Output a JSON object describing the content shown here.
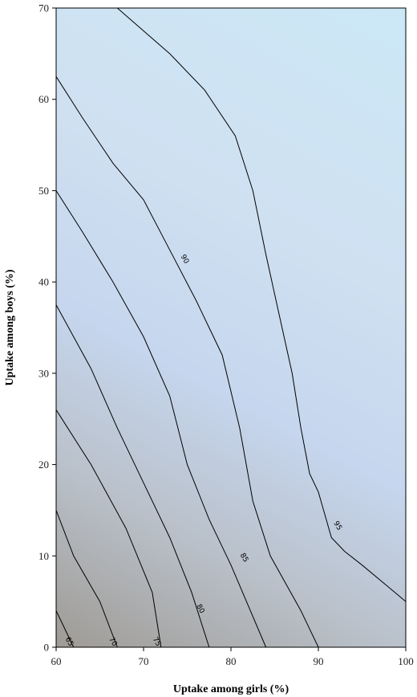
{
  "chart_data": {
    "type": "contour",
    "xlabel": "Uptake among girls (%)",
    "ylabel": "Uptake among boys (%)",
    "xlim": [
      60,
      100
    ],
    "ylim": [
      0,
      70
    ],
    "x_ticks": [
      60,
      70,
      80,
      90,
      100
    ],
    "y_ticks": [
      0,
      10,
      20,
      30,
      40,
      50,
      60,
      70
    ],
    "grid": false,
    "colors": {
      "low": "#9e9a94",
      "mid": "#c6d6ee",
      "high": "#cce8f6",
      "line": "#000000"
    },
    "contours": [
      {
        "level": 65,
        "label": "65",
        "points": [
          [
            60,
            4
          ],
          [
            62,
            0
          ]
        ]
      },
      {
        "level": 70,
        "label": "70",
        "points": [
          [
            60,
            15
          ],
          [
            62,
            10
          ],
          [
            65,
            5
          ],
          [
            67,
            0
          ]
        ]
      },
      {
        "level": 75,
        "label": "75",
        "points": [
          [
            60,
            26
          ],
          [
            64,
            20
          ],
          [
            68,
            13
          ],
          [
            71,
            6
          ],
          [
            72,
            0
          ]
        ]
      },
      {
        "level": 80,
        "label": "80",
        "points": [
          [
            60,
            37.5
          ],
          [
            64,
            30.5
          ],
          [
            67,
            24
          ],
          [
            70,
            18
          ],
          [
            73,
            12
          ],
          [
            75.5,
            6
          ],
          [
            77.5,
            0
          ]
        ]
      },
      {
        "level": 85,
        "label": "85",
        "points": [
          [
            60,
            50
          ],
          [
            63,
            45.5
          ],
          [
            66.5,
            40
          ],
          [
            70,
            34
          ],
          [
            73,
            27.5
          ],
          [
            75,
            20
          ],
          [
            77.5,
            14
          ],
          [
            80,
            9
          ],
          [
            82,
            4.5
          ],
          [
            84,
            0
          ]
        ]
      },
      {
        "level": 90,
        "label": "90",
        "points": [
          [
            60,
            62.5
          ],
          [
            63,
            58
          ],
          [
            66.5,
            53
          ],
          [
            70,
            49
          ],
          [
            73,
            43.5
          ],
          [
            76,
            38
          ],
          [
            79,
            32
          ],
          [
            81,
            24
          ],
          [
            82.5,
            16
          ],
          [
            84.5,
            10
          ],
          [
            88,
            4
          ],
          [
            90,
            0
          ]
        ]
      },
      {
        "level": 95,
        "label": "95",
        "points": [
          [
            67,
            70
          ],
          [
            73,
            65
          ],
          [
            77,
            61
          ],
          [
            80.5,
            56
          ],
          [
            82.5,
            50
          ],
          [
            84,
            43
          ],
          [
            85.5,
            36.5
          ],
          [
            87,
            30
          ],
          [
            88,
            24
          ],
          [
            89,
            19
          ],
          [
            90,
            17
          ],
          [
            91.5,
            12
          ],
          [
            93,
            10.5
          ],
          [
            95,
            9
          ],
          [
            97.5,
            7
          ],
          [
            100,
            5
          ]
        ]
      }
    ],
    "contour_labels": [
      {
        "label": "65",
        "x": 61.5,
        "y": 0.6
      },
      {
        "label": "70",
        "x": 66.5,
        "y": 0.6
      },
      {
        "label": "75",
        "x": 71.5,
        "y": 0.6
      },
      {
        "label": "80",
        "x": 76.5,
        "y": 4.2
      },
      {
        "label": "85",
        "x": 81.5,
        "y": 9.8
      },
      {
        "label": "90",
        "x": 74.7,
        "y": 42.5
      },
      {
        "label": "95",
        "x": 92.2,
        "y": 13.3
      }
    ]
  }
}
